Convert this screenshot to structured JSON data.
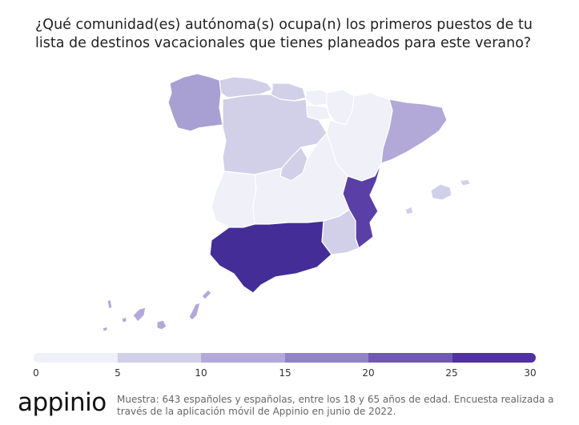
{
  "title": "¿Qué comunidad(es) autónoma(s) ocupa(n) los primeros puestos de tu lista de destinos vacacionales que tienes planeados para este verano?",
  "legend": {
    "ticks": [
      "0",
      "5",
      "10",
      "15",
      "20",
      "25",
      "30"
    ],
    "colors": [
      "#eff0f8",
      "#d2cfe8",
      "#b2a9d8",
      "#9184c6",
      "#6f59b3",
      "#4f32a0",
      "#442d97"
    ]
  },
  "regions": {
    "galicia": {
      "value": 16,
      "color": "#a89fd3"
    },
    "asturias": {
      "value": 8,
      "color": "#d2cfe8"
    },
    "cantabria": {
      "value": 8,
      "color": "#d2cfe8"
    },
    "pais_vasco": {
      "value": 4,
      "color": "#eff0f8"
    },
    "navarra": {
      "value": 3,
      "color": "#eff0f8"
    },
    "la_rioja": {
      "value": 1,
      "color": "#eff0f8"
    },
    "aragon": {
      "value": 3,
      "color": "#eff0f8"
    },
    "cataluna": {
      "value": 14,
      "color": "#b2a9d8"
    },
    "castilla_y_leon": {
      "value": 8,
      "color": "#d2cfe8"
    },
    "madrid": {
      "value": 8,
      "color": "#d2cfe8"
    },
    "castilla_la_mancha": {
      "value": 3,
      "color": "#eff0f8"
    },
    "extremadura": {
      "value": 2,
      "color": "#eff0f8"
    },
    "valencia": {
      "value": 23,
      "color": "#5a3fa6"
    },
    "murcia": {
      "value": 8,
      "color": "#d2cfe8"
    },
    "andalucia": {
      "value": 30,
      "color": "#442d97"
    },
    "baleares": {
      "value": 8,
      "color": "#d2cfe8"
    },
    "canarias": {
      "value": 14,
      "color": "#b2a9d8"
    }
  },
  "logo": "appinio",
  "footnote": "Muestra: 643 españoles y españolas, entre los 18 y 65 años de edad. Encuesta realizada a través de la aplicación móvil de Appinio en junio de 2022."
}
